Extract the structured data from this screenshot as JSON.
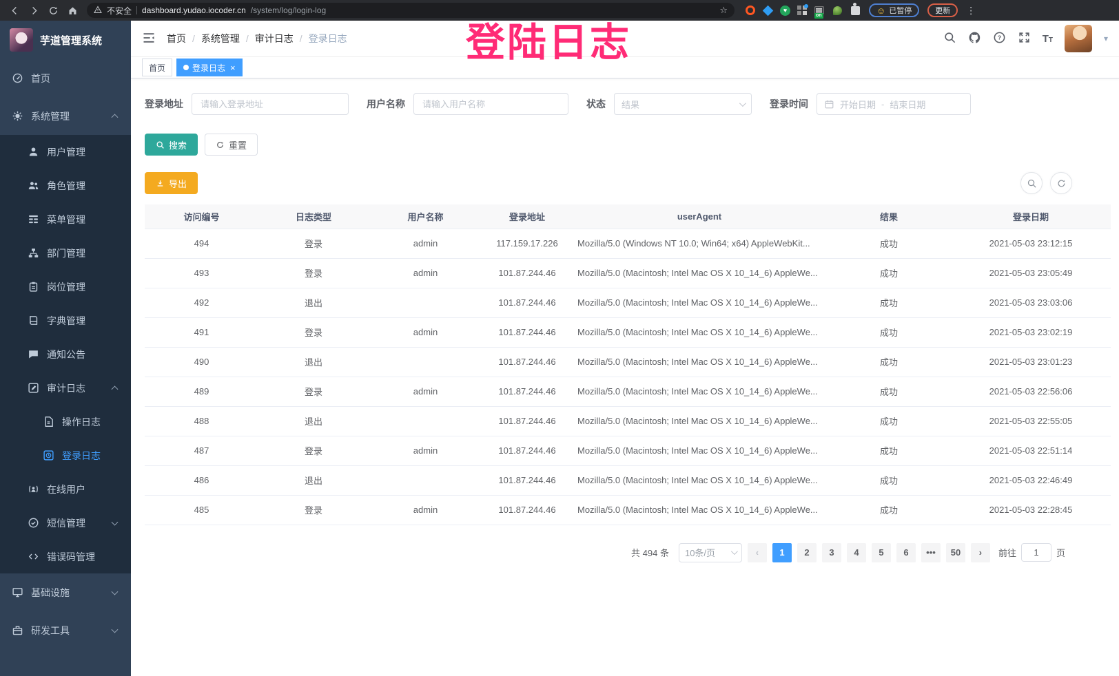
{
  "browser": {
    "security_label": "不安全",
    "url_host": "dashboard.yudao.iocoder.cn",
    "url_path": "/system/log/login-log",
    "extension_badge": "on",
    "paused_label": "已暂停",
    "update_label": "更新"
  },
  "icons": {
    "star": "☆",
    "menu_dots": "⋮",
    "caret_down": "▾",
    "heart": "♥",
    "smiley": "☺",
    "prev": "‹",
    "next": "›"
  },
  "overlay": {
    "text": "登陆日志",
    "color": "#ff2b76"
  },
  "sidebar": {
    "logo_title": "芋道管理系统",
    "items": [
      {
        "id": "home",
        "label": "首页",
        "icon": "dashboard",
        "level": 1
      },
      {
        "id": "system",
        "label": "系统管理",
        "icon": "gear",
        "level": 1,
        "arrow": "up"
      },
      {
        "id": "users",
        "label": "用户管理",
        "icon": "user",
        "level": 2
      },
      {
        "id": "roles",
        "label": "角色管理",
        "icon": "peoples",
        "level": 2
      },
      {
        "id": "menus",
        "label": "菜单管理",
        "icon": "menuTree",
        "level": 2
      },
      {
        "id": "depts",
        "label": "部门管理",
        "icon": "orgTree",
        "level": 2
      },
      {
        "id": "posts",
        "label": "岗位管理",
        "icon": "post",
        "level": 2
      },
      {
        "id": "dict",
        "label": "字典管理",
        "icon": "dict",
        "level": 2
      },
      {
        "id": "notice",
        "label": "通知公告",
        "icon": "message",
        "level": 2
      },
      {
        "id": "audit-log",
        "label": "审计日志",
        "icon": "log",
        "level": 2,
        "arrow": "up"
      },
      {
        "id": "operation-log",
        "label": "操作日志",
        "icon": "docLog",
        "level": 3
      },
      {
        "id": "login-log",
        "label": "登录日志",
        "icon": "loginLog",
        "level": 3,
        "active": true
      },
      {
        "id": "online-users",
        "label": "在线用户",
        "icon": "online",
        "level": 2
      },
      {
        "id": "sms",
        "label": "短信管理",
        "icon": "sms",
        "level": 2,
        "arrow": "down"
      },
      {
        "id": "error-code",
        "label": "错误码管理",
        "icon": "code",
        "level": 2
      },
      {
        "id": "infra",
        "label": "基础设施",
        "icon": "infra",
        "level": 1,
        "arrow": "down"
      },
      {
        "id": "dev-tools",
        "label": "研发工具",
        "icon": "tool",
        "level": 1,
        "arrow": "down"
      }
    ]
  },
  "header": {
    "breadcrumbs": [
      "首页",
      "系统管理",
      "审计日志",
      "登录日志"
    ]
  },
  "tags": {
    "items": [
      {
        "label": "首页",
        "active": false
      },
      {
        "label": "登录日志",
        "active": true
      }
    ]
  },
  "filters": {
    "login_address": {
      "label": "登录地址",
      "placeholder": "请输入登录地址"
    },
    "username": {
      "label": "用户名称",
      "placeholder": "请输入用户名称"
    },
    "status": {
      "label": "状态",
      "placeholder": "结果"
    },
    "login_time": {
      "label": "登录时间",
      "start_placeholder": "开始日期",
      "separator": "-",
      "end_placeholder": "结束日期"
    }
  },
  "actions": {
    "search_label": "搜索",
    "reset_label": "重置",
    "export_label": "导出"
  },
  "table": {
    "columns": [
      "访问编号",
      "日志类型",
      "用户名称",
      "登录地址",
      "userAgent",
      "结果",
      "登录日期"
    ],
    "rows": [
      [
        "494",
        "登录",
        "admin",
        "117.159.17.226",
        "Mozilla/5.0 (Windows NT 10.0; Win64; x64) AppleWebKit...",
        "成功",
        "2021-05-03 23:12:15"
      ],
      [
        "493",
        "登录",
        "admin",
        "101.87.244.46",
        "Mozilla/5.0 (Macintosh; Intel Mac OS X 10_14_6) AppleWe...",
        "成功",
        "2021-05-03 23:05:49"
      ],
      [
        "492",
        "退出",
        "",
        "101.87.244.46",
        "Mozilla/5.0 (Macintosh; Intel Mac OS X 10_14_6) AppleWe...",
        "成功",
        "2021-05-03 23:03:06"
      ],
      [
        "491",
        "登录",
        "admin",
        "101.87.244.46",
        "Mozilla/5.0 (Macintosh; Intel Mac OS X 10_14_6) AppleWe...",
        "成功",
        "2021-05-03 23:02:19"
      ],
      [
        "490",
        "退出",
        "",
        "101.87.244.46",
        "Mozilla/5.0 (Macintosh; Intel Mac OS X 10_14_6) AppleWe...",
        "成功",
        "2021-05-03 23:01:23"
      ],
      [
        "489",
        "登录",
        "admin",
        "101.87.244.46",
        "Mozilla/5.0 (Macintosh; Intel Mac OS X 10_14_6) AppleWe...",
        "成功",
        "2021-05-03 22:56:06"
      ],
      [
        "488",
        "退出",
        "",
        "101.87.244.46",
        "Mozilla/5.0 (Macintosh; Intel Mac OS X 10_14_6) AppleWe...",
        "成功",
        "2021-05-03 22:55:05"
      ],
      [
        "487",
        "登录",
        "admin",
        "101.87.244.46",
        "Mozilla/5.0 (Macintosh; Intel Mac OS X 10_14_6) AppleWe...",
        "成功",
        "2021-05-03 22:51:14"
      ],
      [
        "486",
        "退出",
        "",
        "101.87.244.46",
        "Mozilla/5.0 (Macintosh; Intel Mac OS X 10_14_6) AppleWe...",
        "成功",
        "2021-05-03 22:46:49"
      ],
      [
        "485",
        "登录",
        "admin",
        "101.87.244.46",
        "Mozilla/5.0 (Macintosh; Intel Mac OS X 10_14_6) AppleWe...",
        "成功",
        "2021-05-03 22:28:45"
      ]
    ]
  },
  "pagination": {
    "total": "共 494 条",
    "page_size": "10条/页",
    "pages": [
      "1",
      "2",
      "3",
      "4",
      "5",
      "6"
    ],
    "active_page": "1",
    "more": "•••",
    "last_page": "50",
    "goto_label": "前往",
    "goto_value": "1",
    "goto_suffix": "页"
  },
  "colors": {
    "accent": "#409eff",
    "sidebar_bg": "#304156",
    "submenu_bg": "#1f2d3d",
    "search_button": "#2ea89b",
    "export_button": "#f4aa20",
    "overlay_pink": "#ff2b76"
  }
}
